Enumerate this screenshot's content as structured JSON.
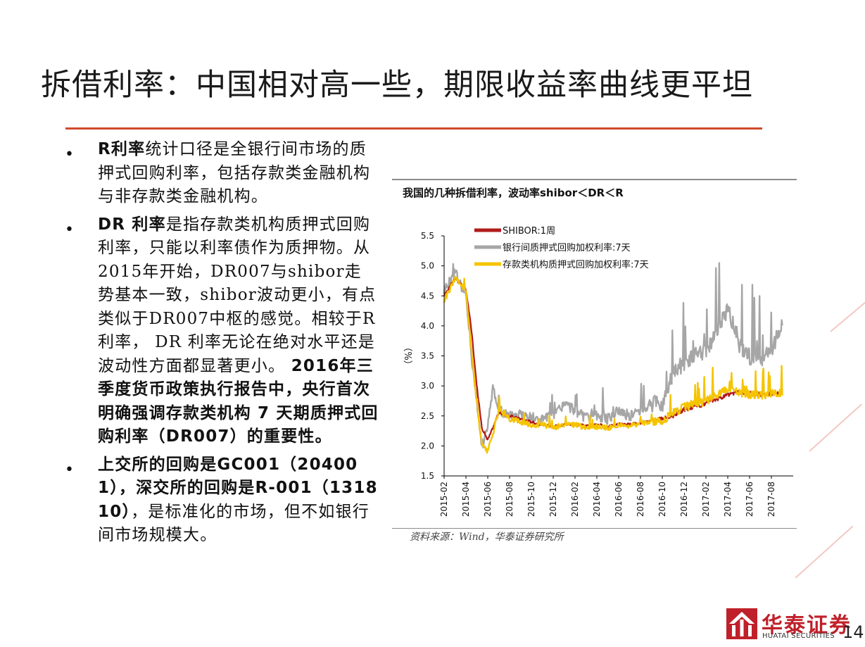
{
  "slide": {
    "title": "拆借利率：中国相对高一些，期限收益率曲线更平坦",
    "page_number": "14",
    "accent_color": "#d04a2a"
  },
  "bullets": [
    {
      "segments": [
        {
          "text": "R利率",
          "bold": true
        },
        {
          "text": "统计口径是全银行间市场的质押式回购利率，包括存款类金融机构与非存款类金融机构。",
          "bold": false
        }
      ]
    },
    {
      "segments": [
        {
          "text": "DR 利率",
          "bold": true
        },
        {
          "text": "是指存款类机构质押式回购利率，只能以利率债作为质押物。从2015年开始，DR007与shibor走势基本一致，shibor波动更小，有点类似于DR007中枢的感觉。相较于R 利率， DR 利率无论在绝对水平还是波动性方面都显著更小。 ",
          "bold": false
        },
        {
          "text": "2016年三季度货币政策执行报告中，央行首次明确强调存款类机构 7 天期质押式回购利率（DR007）的重要性。",
          "bold": true
        }
      ]
    },
    {
      "segments": [
        {
          "text": "上交所的回购是GC001（204001），深交所的回购是R-001（131810）",
          "bold": true
        },
        {
          "text": "，是标准化的市场，但不如银行间市场规模大。",
          "bold": false
        }
      ]
    }
  ],
  "chart": {
    "title": "我国的几种拆借利率，波动率shibor＜DR＜R",
    "source": "资料来源：Wind，华泰证券研究所"
  },
  "chart_data": {
    "type": "line",
    "ylabel": "（%）",
    "ylim": [
      1.5,
      5.5
    ],
    "yticks": [
      "5.5",
      "5.0",
      "4.5",
      "4.0",
      "3.5",
      "3.0",
      "2.5",
      "2.0",
      "1.5"
    ],
    "xlim": [
      "2015-02",
      "2017-10"
    ],
    "xticks": [
      "2015-02",
      "2015-04",
      "2015-06",
      "2015-08",
      "2015-10",
      "2015-12",
      "2016-02",
      "2016-04",
      "2016-06",
      "2016-08",
      "2016-10",
      "2016-12",
      "2017-02",
      "2017-04",
      "2017-06",
      "2017-08"
    ],
    "legend_position": "top-left",
    "grid": false,
    "series": [
      {
        "name": "SHIBOR:1周",
        "color": "#b01a1a",
        "points": [
          [
            "2015-02",
            4.5
          ],
          [
            "2015-03",
            4.8
          ],
          [
            "2015-04",
            4.6
          ],
          [
            "2015-04-15",
            4.0
          ],
          [
            "2015-05",
            3.0
          ],
          [
            "2015-05-15",
            2.3
          ],
          [
            "2015-06",
            2.1
          ],
          [
            "2015-06-15",
            2.3
          ],
          [
            "2015-07",
            2.55
          ],
          [
            "2015-08",
            2.5
          ],
          [
            "2015-09",
            2.45
          ],
          [
            "2015-10",
            2.4
          ],
          [
            "2015-11",
            2.35
          ],
          [
            "2015-12",
            2.33
          ],
          [
            "2016-01",
            2.35
          ],
          [
            "2016-02",
            2.36
          ],
          [
            "2016-03",
            2.33
          ],
          [
            "2016-04",
            2.35
          ],
          [
            "2016-05",
            2.33
          ],
          [
            "2016-06",
            2.36
          ],
          [
            "2016-07",
            2.36
          ],
          [
            "2016-08",
            2.38
          ],
          [
            "2016-09",
            2.42
          ],
          [
            "2016-10",
            2.45
          ],
          [
            "2016-11",
            2.5
          ],
          [
            "2016-12",
            2.6
          ],
          [
            "2017-01",
            2.65
          ],
          [
            "2017-02",
            2.7
          ],
          [
            "2017-03",
            2.78
          ],
          [
            "2017-04",
            2.85
          ],
          [
            "2017-05",
            2.9
          ],
          [
            "2017-06",
            2.88
          ],
          [
            "2017-07",
            2.85
          ],
          [
            "2017-08",
            2.87
          ],
          [
            "2017-09",
            2.9
          ]
        ]
      },
      {
        "name": "银行间质押式回购加权利率:7天",
        "color": "#a6a6a6",
        "points": [
          [
            "2015-02",
            4.6
          ],
          [
            "2015-03",
            4.9
          ],
          [
            "2015-04",
            4.5
          ],
          [
            "2015-04-15",
            3.6
          ],
          [
            "2015-05",
            2.7
          ],
          [
            "2015-05-15",
            2.0
          ],
          [
            "2015-06",
            2.3
          ],
          [
            "2015-06-15",
            3.0
          ],
          [
            "2015-07",
            2.6
          ],
          [
            "2015-08",
            2.5
          ],
          [
            "2015-09",
            2.55
          ],
          [
            "2015-10",
            2.45
          ],
          [
            "2015-11",
            2.45
          ],
          [
            "2015-12",
            2.5
          ],
          [
            "2016-01",
            2.7
          ],
          [
            "2016-02",
            2.6
          ],
          [
            "2016-03",
            2.45
          ],
          [
            "2016-04",
            2.5
          ],
          [
            "2016-05",
            2.45
          ],
          [
            "2016-06",
            2.6
          ],
          [
            "2016-07",
            2.5
          ],
          [
            "2016-08",
            2.6
          ],
          [
            "2016-09",
            2.7
          ],
          [
            "2016-10",
            2.7
          ],
          [
            "2016-11",
            3.2
          ],
          [
            "2016-12",
            3.4
          ],
          [
            "2017-01",
            3.5
          ],
          [
            "2017-02",
            3.6
          ],
          [
            "2017-03",
            3.9
          ],
          [
            "2017-04",
            4.3
          ],
          [
            "2017-05",
            3.7
          ],
          [
            "2017-06",
            3.5
          ],
          [
            "2017-07",
            3.4
          ],
          [
            "2017-08",
            3.6
          ],
          [
            "2017-09",
            4.0
          ]
        ]
      },
      {
        "name": "存款类机构质押式回购加权利率:7天",
        "color": "#f5c400",
        "points": [
          [
            "2015-02",
            4.4
          ],
          [
            "2015-03",
            4.8
          ],
          [
            "2015-04",
            4.6
          ],
          [
            "2015-04-15",
            3.7
          ],
          [
            "2015-05",
            2.7
          ],
          [
            "2015-05-15",
            2.0
          ],
          [
            "2015-06",
            1.9
          ],
          [
            "2015-06-15",
            2.2
          ],
          [
            "2015-07",
            2.6
          ],
          [
            "2015-08",
            2.45
          ],
          [
            "2015-09",
            2.4
          ],
          [
            "2015-10",
            2.35
          ],
          [
            "2015-11",
            2.35
          ],
          [
            "2015-12",
            2.3
          ],
          [
            "2016-01",
            2.35
          ],
          [
            "2016-02",
            2.35
          ],
          [
            "2016-03",
            2.3
          ],
          [
            "2016-04",
            2.32
          ],
          [
            "2016-05",
            2.3
          ],
          [
            "2016-06",
            2.35
          ],
          [
            "2016-07",
            2.33
          ],
          [
            "2016-08",
            2.38
          ],
          [
            "2016-09",
            2.4
          ],
          [
            "2016-10",
            2.42
          ],
          [
            "2016-11",
            2.55
          ],
          [
            "2016-12",
            2.65
          ],
          [
            "2017-01",
            2.7
          ],
          [
            "2017-02",
            2.75
          ],
          [
            "2017-03",
            2.85
          ],
          [
            "2017-04",
            2.95
          ],
          [
            "2017-05",
            2.9
          ],
          [
            "2017-06",
            2.85
          ],
          [
            "2017-07",
            2.85
          ],
          [
            "2017-08",
            2.88
          ],
          [
            "2017-09",
            2.9
          ]
        ]
      }
    ]
  },
  "logo": {
    "name_cn": "华泰证券",
    "name_en": "HUATAI SECURITIES",
    "color": "#c0202a"
  }
}
